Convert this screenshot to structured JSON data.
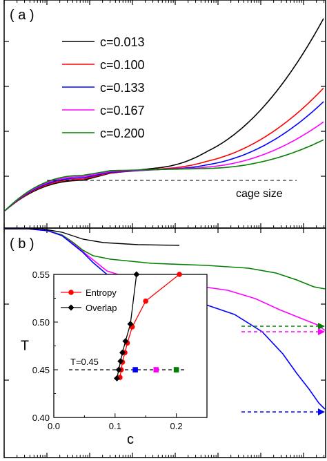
{
  "figure": {
    "panel_a_label": "( a )",
    "panel_b_label": "( b )",
    "cage_label": "cage size"
  },
  "chart_data": [
    {
      "type": "line",
      "panel": "a",
      "xscale": "log",
      "yscale": "log",
      "annotation": "cage size",
      "legend_position": "top-center",
      "series": [
        {
          "name": "c=0.013",
          "color": "#000000",
          "y_end_rel": 0.93
        },
        {
          "name": "c=0.100",
          "color": "#ff0000",
          "y_end_rel": 0.62
        },
        {
          "name": "c=0.133",
          "color": "#0000ff",
          "y_end_rel": 0.56
        },
        {
          "name": "c=0.167",
          "color": "#ff00ff",
          "y_end_rel": 0.47
        },
        {
          "name": "c=0.200",
          "color": "#008000",
          "y_end_rel": 0.39
        }
      ]
    },
    {
      "type": "line",
      "panel": "b",
      "xscale": "log",
      "series": [
        {
          "name": "c=0.133",
          "color": "#0000ff"
        },
        {
          "name": "c=0.167",
          "color": "#ff00ff"
        },
        {
          "name": "c=0.200",
          "color": "#008000"
        }
      ]
    },
    {
      "type": "line",
      "panel": "inset",
      "xlabel": "c",
      "ylabel": "T",
      "xlim": [
        0.0,
        0.25
      ],
      "ylim": [
        0.4,
        0.55
      ],
      "xticks": [
        "0.0",
        "0.1",
        "0.2"
      ],
      "yticks": [
        "0.40",
        "0.45",
        "0.50",
        "0.55"
      ],
      "legend_position": "top-left",
      "annotation": "T=0.45",
      "series": [
        {
          "name": "Entropy",
          "color": "#ff0000",
          "marker": "circle",
          "points": [
            [
              0.108,
              0.442
            ],
            [
              0.11,
              0.45
            ],
            [
              0.112,
              0.458
            ],
            [
              0.116,
              0.468
            ],
            [
              0.12,
              0.478
            ],
            [
              0.128,
              0.495
            ],
            [
              0.15,
              0.522
            ],
            [
              0.205,
              0.55
            ]
          ]
        },
        {
          "name": "Overlap",
          "color": "#000000",
          "marker": "diamond",
          "points": [
            [
              0.103,
              0.441
            ],
            [
              0.106,
              0.45
            ],
            [
              0.109,
              0.459
            ],
            [
              0.112,
              0.468
            ],
            [
              0.117,
              0.48
            ],
            [
              0.125,
              0.498
            ],
            [
              0.135,
              0.55
            ]
          ]
        }
      ],
      "markers_at_T045": [
        {
          "c": 0.133,
          "color": "#0000ff"
        },
        {
          "c": 0.167,
          "color": "#ff00ff"
        },
        {
          "c": 0.2,
          "color": "#008000"
        }
      ]
    }
  ]
}
